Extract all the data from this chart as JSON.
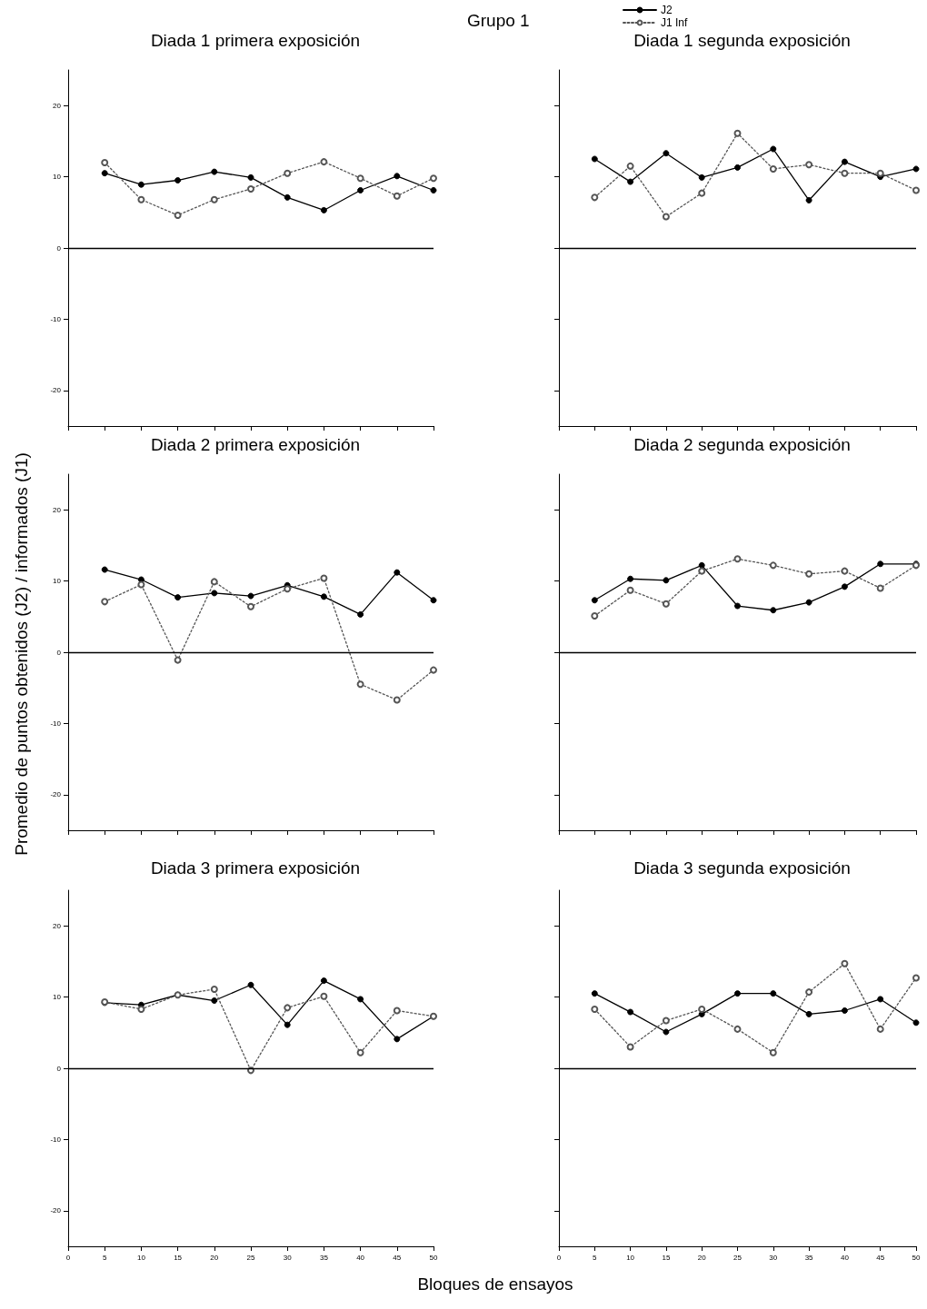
{
  "chart_data": [
    {
      "type": "line",
      "title": "Diada 1 primera exposición",
      "x": [
        5,
        10,
        15,
        20,
        25,
        30,
        35,
        40,
        45,
        50
      ],
      "xlim": [
        0,
        50
      ],
      "xticks": [
        0,
        5,
        10,
        15,
        20,
        25,
        30,
        35,
        40,
        45,
        50
      ],
      "ylim": [
        -25,
        25
      ],
      "yticks": [
        -20,
        -10,
        0,
        10,
        20
      ],
      "tick_labels": "y",
      "marker": "circle",
      "ref_lines": [
        {
          "axis": "y",
          "value": 0
        }
      ],
      "series": [
        {
          "color": "#000000",
          "line_style": "solid",
          "values": [
            10.5,
            8.9,
            9.5,
            10.7,
            9.9,
            7.1,
            5.3,
            8.1,
            10.1,
            8.1
          ]
        },
        {
          "color": "#555555",
          "line_style": "dotted",
          "values": [
            12.0,
            6.8,
            4.6,
            6.8,
            8.3,
            10.5,
            12.1,
            9.8,
            7.3,
            9.8
          ]
        }
      ]
    },
    {
      "type": "line",
      "title": "Diada 1 segunda exposición",
      "annotations": [
        "Grupo 1"
      ],
      "legend": "top left",
      "x": [
        5,
        10,
        15,
        20,
        25,
        30,
        35,
        40,
        45,
        50
      ],
      "xlim": [
        0,
        50
      ],
      "xticks": [
        0,
        5,
        10,
        15,
        20,
        25,
        30,
        35,
        40,
        45,
        50
      ],
      "ylim": [
        -25,
        25
      ],
      "yticks": [
        -20,
        -10,
        0,
        10,
        20
      ],
      "tick_labels": false,
      "marker": "circle",
      "ref_lines": [
        {
          "axis": "y",
          "value": 0
        }
      ],
      "series": [
        {
          "name": "J2",
          "color": "#000000",
          "line_style": "solid",
          "values": [
            12.5,
            9.3,
            13.3,
            9.9,
            11.3,
            13.9,
            6.7,
            12.1,
            10.0,
            11.1
          ]
        },
        {
          "name": "J1 Inf",
          "color": "#555555",
          "line_style": "dotted",
          "values": [
            7.1,
            11.5,
            4.4,
            7.7,
            16.1,
            11.1,
            11.7,
            10.5,
            10.5,
            8.1
          ]
        }
      ]
    },
    {
      "type": "line",
      "title": "Diada 2 primera exposición",
      "ylabel": "Promedio de puntos obtenidos (J2) / informados (J1)",
      "x": [
        5,
        10,
        15,
        20,
        25,
        30,
        35,
        40,
        45,
        50
      ],
      "xlim": [
        0,
        50
      ],
      "xticks": [
        0,
        5,
        10,
        15,
        20,
        25,
        30,
        35,
        40,
        45,
        50
      ],
      "ylim": [
        -25,
        25
      ],
      "yticks": [
        -20,
        -10,
        0,
        10,
        20
      ],
      "tick_labels": "y",
      "marker": "circle",
      "ref_lines": [
        {
          "axis": "y",
          "value": 0
        }
      ],
      "series": [
        {
          "color": "#000000",
          "line_style": "solid",
          "values": [
            11.6,
            10.2,
            7.7,
            8.3,
            7.9,
            9.4,
            7.8,
            5.3,
            11.2,
            7.3
          ]
        },
        {
          "color": "#555555",
          "line_style": "dotted",
          "values": [
            7.1,
            9.5,
            -1.1,
            9.9,
            6.4,
            8.9,
            10.4,
            -4.5,
            -6.7,
            -2.5
          ]
        }
      ]
    },
    {
      "type": "line",
      "title": "Diada 2 segunda exposición",
      "x": [
        5,
        10,
        15,
        20,
        25,
        30,
        35,
        40,
        45,
        50
      ],
      "xlim": [
        0,
        50
      ],
      "xticks": [
        0,
        5,
        10,
        15,
        20,
        25,
        30,
        35,
        40,
        45,
        50
      ],
      "ylim": [
        -25,
        25
      ],
      "yticks": [
        -20,
        -10,
        0,
        10,
        20
      ],
      "tick_labels": false,
      "marker": "circle",
      "ref_lines": [
        {
          "axis": "y",
          "value": 0
        }
      ],
      "series": [
        {
          "color": "#000000",
          "line_style": "solid",
          "values": [
            7.3,
            10.3,
            10.1,
            12.2,
            6.5,
            5.9,
            7.0,
            9.2,
            12.4,
            12.4
          ]
        },
        {
          "color": "#555555",
          "line_style": "dotted",
          "values": [
            5.1,
            8.7,
            6.8,
            11.4,
            13.1,
            12.2,
            11.0,
            11.4,
            9.0,
            12.2
          ]
        }
      ]
    },
    {
      "type": "line",
      "title": "Diada 3 primera exposición",
      "xlabel": "Bloques de ensayos",
      "x": [
        5,
        10,
        15,
        20,
        25,
        30,
        35,
        40,
        45,
        50
      ],
      "xlim": [
        0,
        50
      ],
      "xticks": [
        0,
        5,
        10,
        15,
        20,
        25,
        30,
        35,
        40,
        45,
        50
      ],
      "ylim": [
        -25,
        25
      ],
      "yticks": [
        -20,
        -10,
        0,
        10,
        20
      ],
      "marker": "circle",
      "ref_lines": [
        {
          "axis": "y",
          "value": 0
        }
      ],
      "series": [
        {
          "color": "#000000",
          "line_style": "solid",
          "values": [
            9.2,
            8.9,
            10.3,
            9.5,
            11.7,
            6.1,
            12.3,
            9.7,
            4.1,
            7.3
          ]
        },
        {
          "color": "#555555",
          "line_style": "dotted",
          "values": [
            9.3,
            8.3,
            10.3,
            11.1,
            -0.3,
            8.5,
            10.1,
            2.2,
            8.1,
            7.3
          ]
        }
      ]
    },
    {
      "type": "line",
      "title": "Diada 3 segunda exposición",
      "x": [
        5,
        10,
        15,
        20,
        25,
        30,
        35,
        40,
        45,
        50
      ],
      "xlim": [
        0,
        50
      ],
      "xticks": [
        0,
        5,
        10,
        15,
        20,
        25,
        30,
        35,
        40,
        45,
        50
      ],
      "ylim": [
        -25,
        25
      ],
      "yticks": [
        -20,
        -10,
        0,
        10,
        20
      ],
      "tick_labels": "x",
      "marker": "circle",
      "ref_lines": [
        {
          "axis": "y",
          "value": 0
        }
      ],
      "series": [
        {
          "color": "#000000",
          "line_style": "solid",
          "values": [
            10.5,
            7.9,
            5.1,
            7.6,
            10.5,
            10.5,
            7.6,
            8.1,
            9.7,
            6.4
          ]
        },
        {
          "color": "#555555",
          "line_style": "dotted",
          "values": [
            8.3,
            3.0,
            6.7,
            8.3,
            5.5,
            2.2,
            10.7,
            14.7,
            5.5,
            12.7
          ]
        }
      ]
    }
  ]
}
